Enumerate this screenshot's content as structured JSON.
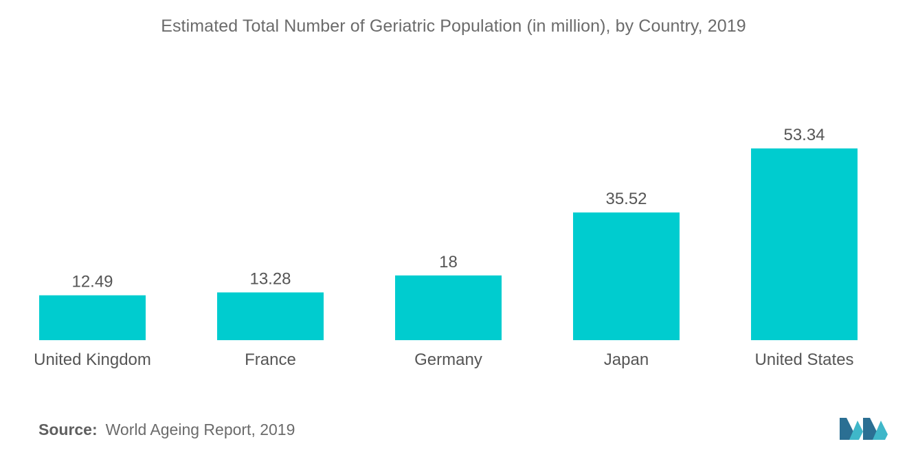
{
  "chart_data": {
    "type": "bar",
    "title": "Estimated Total Number of Geriatric Population (in million), by Country, 2019",
    "categories": [
      "United Kingdom",
      "France",
      "Germany",
      "Japan",
      "United States"
    ],
    "values": [
      12.49,
      13.28,
      18,
      35.52,
      53.34
    ],
    "value_labels": [
      "12.49",
      "13.28",
      "18",
      "35.52",
      "53.34"
    ],
    "xlabel": "",
    "ylabel": "",
    "ylim": [
      0,
      60
    ],
    "grid": false,
    "legend": "none",
    "bar_color": "#00cccf"
  },
  "source": {
    "label": "Source:",
    "text": "World Ageing Report, 2019"
  },
  "colors": {
    "title_text": "#6b6b6b",
    "label_text": "#555555",
    "bar": "#00cccf",
    "logo_dark": "#2b6f93",
    "logo_light": "#3fb7c9"
  },
  "logo": {
    "name": "brand-logo"
  }
}
